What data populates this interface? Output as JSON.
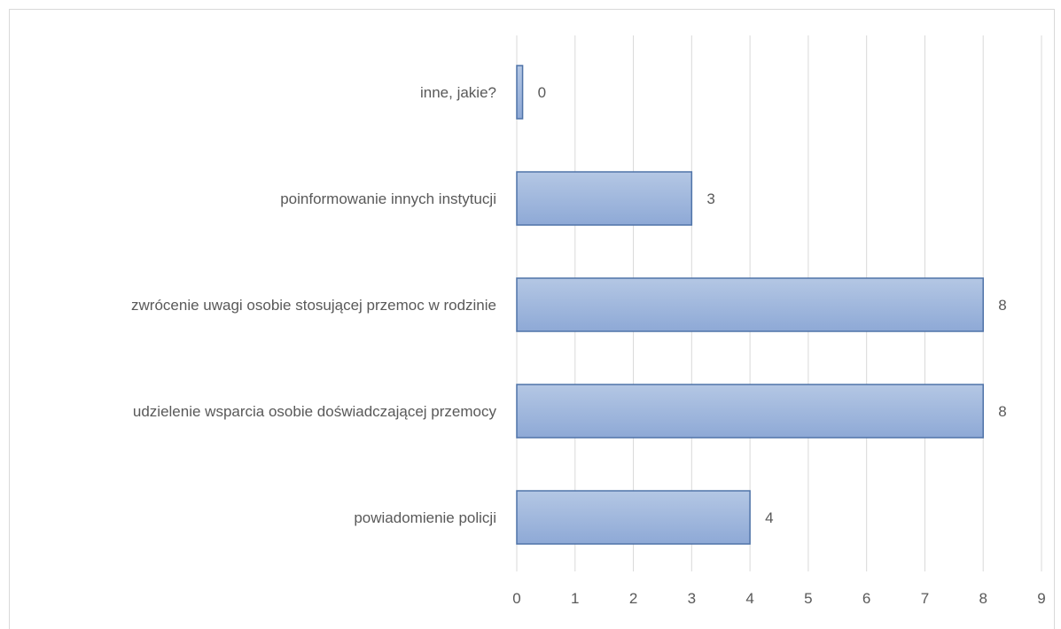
{
  "chart_data": {
    "type": "bar",
    "orientation": "horizontal",
    "categories": [
      "inne, jakie?",
      "poinformowanie innych instytucji",
      "zwrócenie uwagi osobie stosującej przemoc w rodzinie",
      "udzielenie wsparcia osobie doświadczającej przemocy",
      "powiadomienie policji"
    ],
    "values": [
      0.1,
      3,
      8,
      8,
      4
    ],
    "data_labels": [
      "0",
      "3",
      "8",
      "8",
      "4"
    ],
    "xlim": [
      0,
      9
    ],
    "xticks": [
      "0",
      "1",
      "2",
      "3",
      "4",
      "5",
      "6",
      "7",
      "8",
      "9"
    ],
    "grid": "vertical",
    "bar_color": "#a5bbdc",
    "bar_color_dark": "#8ea9d6",
    "bar_border": "#4f73a8"
  }
}
